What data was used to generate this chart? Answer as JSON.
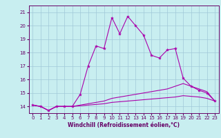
{
  "title": "",
  "xlabel": "Windchill (Refroidissement éolien,°C)",
  "ylabel": "",
  "bg_color": "#c8eef0",
  "grid_color": "#a0c8d8",
  "line_color": "#aa00aa",
  "xlim": [
    -0.5,
    23.5
  ],
  "ylim": [
    13.5,
    21.5
  ],
  "xticks": [
    0,
    1,
    2,
    3,
    4,
    5,
    6,
    7,
    8,
    9,
    10,
    11,
    12,
    13,
    14,
    15,
    16,
    17,
    18,
    19,
    20,
    21,
    22,
    23
  ],
  "yticks": [
    14,
    15,
    16,
    17,
    18,
    19,
    20,
    21
  ],
  "series1_x": [
    0,
    1,
    2,
    3,
    4,
    5,
    6,
    7,
    8,
    9,
    10,
    11,
    12,
    13,
    14,
    15,
    16,
    17,
    18,
    19,
    20,
    21,
    22,
    23
  ],
  "series1_y": [
    14.1,
    14.0,
    13.7,
    14.0,
    14.0,
    14.0,
    14.9,
    17.0,
    18.5,
    18.3,
    20.6,
    19.4,
    20.7,
    20.0,
    19.3,
    17.8,
    17.6,
    18.2,
    18.3,
    16.1,
    15.5,
    15.2,
    15.0,
    14.4
  ],
  "series2_x": [
    0,
    1,
    2,
    3,
    4,
    5,
    6,
    7,
    8,
    9,
    10,
    11,
    12,
    13,
    14,
    15,
    16,
    17,
    18,
    19,
    20,
    21,
    22,
    23
  ],
  "series2_y": [
    14.1,
    14.0,
    13.7,
    14.0,
    14.0,
    14.0,
    14.1,
    14.2,
    14.3,
    14.4,
    14.6,
    14.7,
    14.8,
    14.9,
    15.0,
    15.1,
    15.2,
    15.3,
    15.5,
    15.7,
    15.5,
    15.3,
    15.1,
    14.4
  ],
  "series3_x": [
    0,
    1,
    2,
    3,
    4,
    5,
    6,
    7,
    8,
    9,
    10,
    11,
    12,
    13,
    14,
    15,
    16,
    17,
    18,
    19,
    20,
    21,
    22,
    23
  ],
  "series3_y": [
    14.1,
    14.0,
    13.7,
    14.0,
    14.0,
    14.0,
    14.05,
    14.1,
    14.15,
    14.2,
    14.3,
    14.35,
    14.4,
    14.45,
    14.5,
    14.55,
    14.6,
    14.65,
    14.7,
    14.8,
    14.75,
    14.7,
    14.6,
    14.4
  ],
  "tick_fontsize": 5.0,
  "xlabel_fontsize": 5.5,
  "marker_size": 3.0,
  "line_width": 0.8
}
